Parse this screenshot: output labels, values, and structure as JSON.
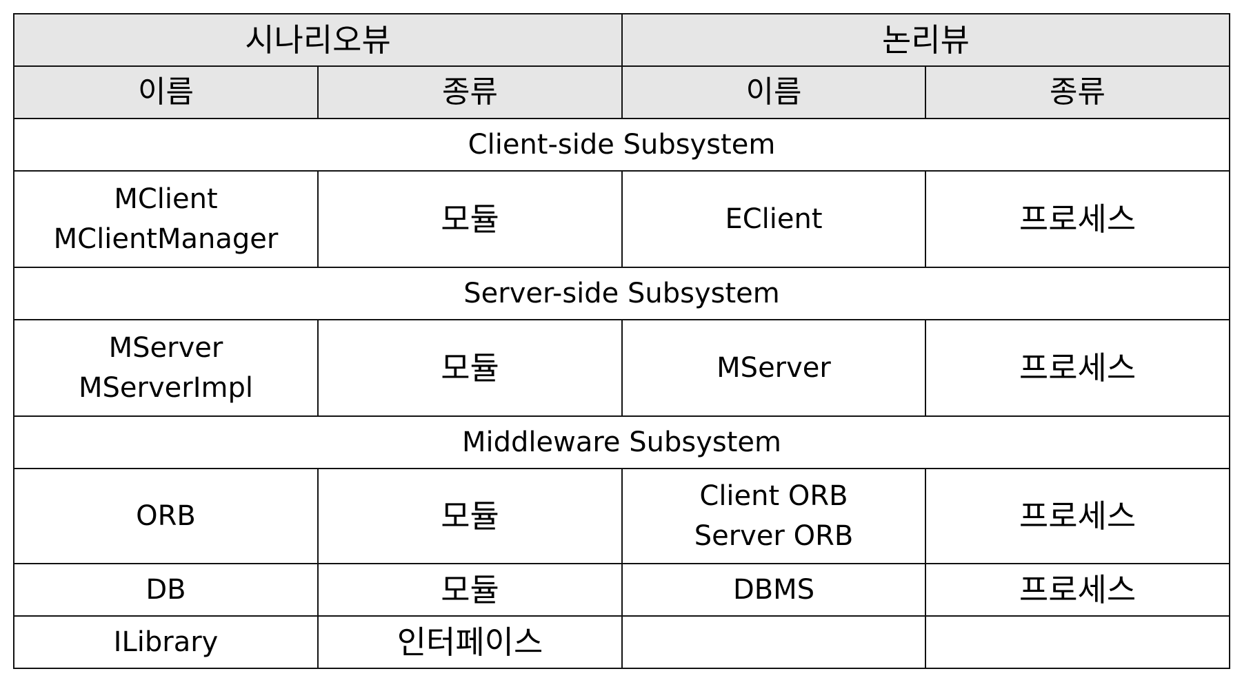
{
  "header": {
    "scenario_view": "시나리오뷰",
    "logical_view": "논리뷰",
    "name_col": "이름",
    "type_col": "종류"
  },
  "sections": [
    {
      "title": "Client-side Subsystem",
      "rows": [
        {
          "scenario_name_lines": [
            "MClient",
            "MClientManager"
          ],
          "scenario_type": "모듈",
          "logical_name_lines": [
            "EClient"
          ],
          "logical_type": "프로세스"
        }
      ]
    },
    {
      "title": "Server-side Subsystem",
      "rows": [
        {
          "scenario_name_lines": [
            "MServer",
            "MServerImpl"
          ],
          "scenario_type": "모듈",
          "logical_name_lines": [
            "MServer"
          ],
          "logical_type": "프로세스"
        }
      ]
    },
    {
      "title": "Middleware Subsystem",
      "rows": [
        {
          "scenario_name_lines": [
            "ORB"
          ],
          "scenario_type": "모듈",
          "logical_name_lines": [
            "Client ORB",
            "Server ORB"
          ],
          "logical_type": "프로세스"
        },
        {
          "scenario_name_lines": [
            "DB"
          ],
          "scenario_type": "모듈",
          "logical_name_lines": [
            "DBMS"
          ],
          "logical_type": "프로세스"
        },
        {
          "scenario_name_lines": [
            "ILibrary"
          ],
          "scenario_type": "인터페이스",
          "logical_name_lines": [
            ""
          ],
          "logical_type": ""
        }
      ]
    }
  ]
}
